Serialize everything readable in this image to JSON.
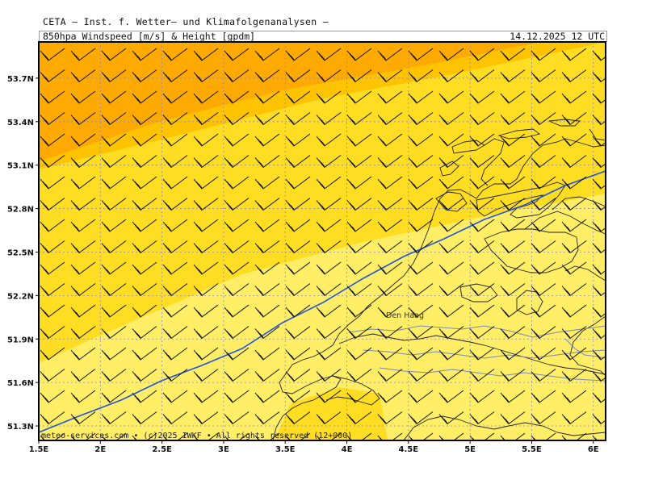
{
  "header": {
    "source": "CETA – Inst. f. Wetter– und Klimafolgenanalysen –",
    "product": "850hpa Windspeed [m/s] & Height [gpdm]",
    "valid_time": "14.12.2025 12 UTC"
  },
  "map": {
    "lat_range": [
      51.2,
      53.95
    ],
    "lon_range": [
      1.5,
      6.1
    ],
    "lat_labels": [
      "53.7N",
      "53.4N",
      "53.1N",
      "52.8N",
      "52.5N",
      "52.2N",
      "51.9N",
      "51.6N",
      "51.3N"
    ],
    "lat_values": [
      53.7,
      53.4,
      53.1,
      52.8,
      52.5,
      52.2,
      51.9,
      51.6,
      51.3
    ],
    "lon_labels": [
      "1.5E",
      "2E",
      "2.5E",
      "3E",
      "3.5E",
      "4E",
      "4.5E",
      "5E",
      "5.5E",
      "6E"
    ],
    "lon_values": [
      1.5,
      2.0,
      2.5,
      3.0,
      3.5,
      4.0,
      4.5,
      5.0,
      5.5,
      6.0
    ],
    "city_label": "Den Haag",
    "copyright": "meteo-services.com • (c)2025 IWKF • All rights reserved (12+000)",
    "colors": {
      "wind_band_strong": "#ffaa00",
      "wind_band_high": "#ffc300",
      "wind_band_mid": "#ffdd22",
      "wind_band_low": "#ffee66",
      "height_contour": "#2255dd",
      "coastline": "#222222",
      "river": "#7788bb",
      "grid": "#8888cc"
    },
    "wind_direction": "southwesterly",
    "height_contour_count": 1
  }
}
